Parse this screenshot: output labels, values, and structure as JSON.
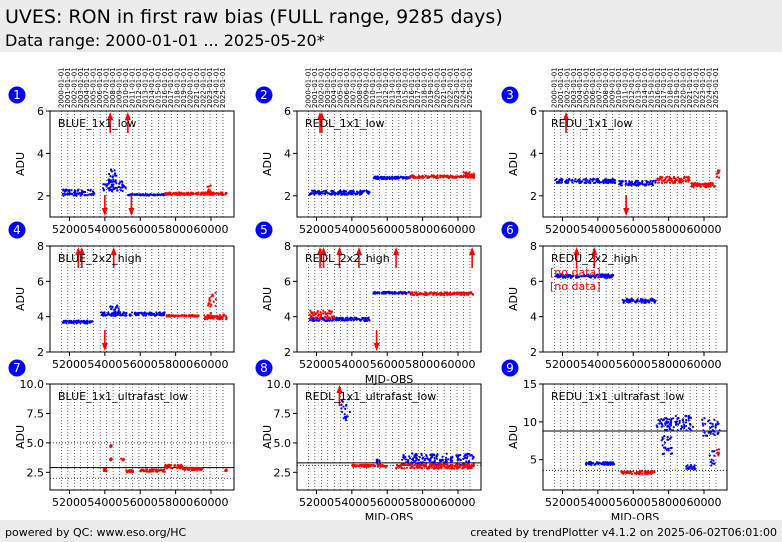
{
  "header": {
    "title": "UVES: RON in first raw bias (FULL range, 9285 days)",
    "subtitle": "Data range: 2000-01-01 ... 2025-05-20*"
  },
  "footer": {
    "left": "powered by QC: www.eso.org/HC",
    "right": "created by trendPlotter v4.1.2 on 2025-06-02T06:01:00"
  },
  "colors": {
    "blue_points": "#0000ff",
    "red_points": "#ff0000",
    "badge": "#0000ff",
    "line": "#000000"
  },
  "chart_data": [
    {
      "type": "scatter",
      "panel": "1",
      "name": "BLUE_1x1_low",
      "ylabel": "ADU",
      "xlabel": "",
      "xlim": [
        50900,
        61300
      ],
      "ylim": [
        1,
        6
      ],
      "yticks": [
        2,
        4,
        6
      ],
      "xticks": [
        52000,
        54000,
        56000,
        58000,
        60000
      ],
      "year_labels": [
        "2000-01-01",
        "2001-01-01",
        "2002-01-01",
        "2003-01-01",
        "2004-01-01",
        "2005-01-01",
        "2006-01-01",
        "2007-01-01",
        "2008-01-01",
        "2009-01-01",
        "2010-01-01",
        "2011-01-01",
        "2012-01-01",
        "2013-01-01",
        "2014-01-01",
        "2015-01-01",
        "2016-01-01",
        "2017-01-01",
        "2018-01-01",
        "2019-01-01",
        "2020-01-01",
        "2021-01-01",
        "2022-01-01",
        "2023-01-01",
        "2024-01-01",
        "2025-01-01"
      ],
      "series": [
        {
          "color": "blue",
          "segments": [
            {
              "x": [
                51600,
                53400
              ],
              "y": 2.15,
              "spread": 0.15
            },
            {
              "x": [
                53900,
                55200
              ],
              "y": 2.45,
              "spread": 0.25
            },
            {
              "x": [
                54200,
                54700
              ],
              "y": 2.9,
              "spread": 0.4
            },
            {
              "x": [
                55300,
                57400
              ],
              "y": 2.05,
              "spread": 0.03
            }
          ]
        },
        {
          "color": "red",
          "segments": [
            {
              "x": [
                57400,
                60900
              ],
              "y": 2.1,
              "spread": 0.06
            },
            {
              "x": [
                59800,
                60000
              ],
              "y": 2.3,
              "spread": 0.2
            }
          ]
        }
      ],
      "arrows": [
        {
          "x": 54300,
          "dir": "up"
        },
        {
          "x": 55300,
          "dir": "up"
        },
        {
          "x": 54000,
          "dir": "down"
        },
        {
          "x": 55500,
          "dir": "down"
        }
      ],
      "hlines": [],
      "notes": []
    },
    {
      "type": "scatter",
      "panel": "2",
      "name": "REDL_1x1_low",
      "ylabel": "ADU",
      "xlabel": "",
      "xlim": [
        50900,
        61300
      ],
      "ylim": [
        1,
        6
      ],
      "yticks": [
        2,
        4,
        6
      ],
      "xticks": [
        52000,
        54000,
        56000,
        58000,
        60000
      ],
      "year_labels": [
        "2000-01-01",
        "2001-01-01",
        "2002-01-01",
        "2003-01-01",
        "2004-01-01",
        "2005-01-01",
        "2006-01-01",
        "2007-01-01",
        "2008-01-01",
        "2009-01-01",
        "2010-01-01",
        "2011-01-01",
        "2012-01-01",
        "2013-01-01",
        "2014-01-01",
        "2015-01-01",
        "2016-01-01",
        "2017-01-01",
        "2018-01-01",
        "2019-01-01",
        "2020-01-01",
        "2021-01-01",
        "2022-01-01",
        "2023-01-01",
        "2024-01-01",
        "2025-01-01"
      ],
      "series": [
        {
          "color": "blue",
          "segments": [
            {
              "x": [
                51600,
                55000
              ],
              "y": 2.15,
              "spread": 0.1
            },
            {
              "x": [
                55200,
                57300
              ],
              "y": 2.85,
              "spread": 0.06
            }
          ]
        },
        {
          "color": "red",
          "segments": [
            {
              "x": [
                57300,
                60900
              ],
              "y": 2.9,
              "spread": 0.06
            },
            {
              "x": [
                60300,
                60900
              ],
              "y": 3.0,
              "spread": 0.12
            }
          ]
        }
      ],
      "arrows": [
        {
          "x": 52200,
          "dir": "up"
        },
        {
          "x": 52300,
          "dir": "up"
        }
      ],
      "hlines": [],
      "notes": []
    },
    {
      "type": "scatter",
      "panel": "3",
      "name": "REDU_1x1_low",
      "ylabel": "ADU",
      "xlabel": "",
      "xlim": [
        50900,
        61300
      ],
      "ylim": [
        1,
        6
      ],
      "yticks": [
        2,
        4,
        6
      ],
      "xticks": [
        52000,
        54000,
        56000,
        58000,
        60000
      ],
      "year_labels": [
        "2000-01-01",
        "2001-01-01",
        "2002-01-01",
        "2003-01-01",
        "2004-01-01",
        "2005-01-01",
        "2006-01-01",
        "2007-01-01",
        "2008-01-01",
        "2009-01-01",
        "2010-01-01",
        "2011-01-01",
        "2012-01-01",
        "2013-01-01",
        "2014-01-01",
        "2015-01-01",
        "2016-01-01",
        "2017-01-01",
        "2018-01-01",
        "2019-01-01",
        "2020-01-01",
        "2021-01-01",
        "2022-01-01",
        "2023-01-01",
        "2024-01-01",
        "2025-01-01"
      ],
      "series": [
        {
          "color": "blue",
          "segments": [
            {
              "x": [
                51600,
                55000
              ],
              "y": 2.7,
              "spread": 0.1
            },
            {
              "x": [
                55200,
                57300
              ],
              "y": 2.6,
              "spread": 0.12
            }
          ]
        },
        {
          "color": "red",
          "segments": [
            {
              "x": [
                57300,
                59200
              ],
              "y": 2.75,
              "spread": 0.15
            },
            {
              "x": [
                59300,
                60700
              ],
              "y": 2.5,
              "spread": 0.1
            },
            {
              "x": [
                60700,
                60900
              ],
              "y": 3.0,
              "spread": 0.3
            }
          ]
        }
      ],
      "arrows": [
        {
          "x": 52200,
          "dir": "up"
        },
        {
          "x": 55600,
          "dir": "down"
        }
      ],
      "hlines": [],
      "notes": []
    },
    {
      "type": "scatter",
      "panel": "4",
      "name": "BLUE_2x2_high",
      "ylabel": "ADU",
      "xlabel": "",
      "xlim": [
        50900,
        61300
      ],
      "ylim": [
        2,
        8
      ],
      "yticks": [
        2,
        4,
        6,
        8
      ],
      "xticks": [
        52000,
        54000,
        56000,
        58000,
        60000
      ],
      "series": [
        {
          "color": "blue",
          "segments": [
            {
              "x": [
                51600,
                53300
              ],
              "y": 3.7,
              "spread": 0.08
            },
            {
              "x": [
                53800,
                57400
              ],
              "y": 4.15,
              "spread": 0.1
            },
            {
              "x": [
                54300,
                54800
              ],
              "y": 4.4,
              "spread": 0.3
            }
          ]
        },
        {
          "color": "red",
          "segments": [
            {
              "x": [
                57400,
                59300
              ],
              "y": 4.05,
              "spread": 0.05
            },
            {
              "x": [
                59600,
                60900
              ],
              "y": 4.0,
              "spread": 0.15
            },
            {
              "x": [
                59800,
                60300
              ],
              "y": 4.6,
              "spread": 0.8
            }
          ]
        }
      ],
      "arrows": [
        {
          "x": 52500,
          "dir": "up"
        },
        {
          "x": 52700,
          "dir": "up"
        },
        {
          "x": 54500,
          "dir": "up"
        },
        {
          "x": 54000,
          "dir": "down"
        }
      ],
      "hlines": [],
      "notes": []
    },
    {
      "type": "scatter",
      "panel": "5",
      "name": "REDL_2x2_high",
      "ylabel": "ADU",
      "xlabel": "MJD-OBS",
      "xlim": [
        50900,
        61300
      ],
      "ylim": [
        2,
        8
      ],
      "yticks": [
        2,
        4,
        6,
        8
      ],
      "xticks": [
        52000,
        54000,
        56000,
        58000,
        60000
      ],
      "series": [
        {
          "color": "blue",
          "segments": [
            {
              "x": [
                51600,
                55000
              ],
              "y": 3.85,
              "spread": 0.1
            },
            {
              "x": [
                55200,
                57300
              ],
              "y": 5.35,
              "spread": 0.05
            }
          ]
        },
        {
          "color": "red",
          "segments": [
            {
              "x": [
                51600,
                53000
              ],
              "y": 4.1,
              "spread": 0.25
            },
            {
              "x": [
                57300,
                60900
              ],
              "y": 5.3,
              "spread": 0.08
            }
          ]
        }
      ],
      "arrows": [
        {
          "x": 52200,
          "dir": "up"
        },
        {
          "x": 52400,
          "dir": "up"
        },
        {
          "x": 53300,
          "dir": "up"
        },
        {
          "x": 54400,
          "dir": "up"
        },
        {
          "x": 56500,
          "dir": "up"
        },
        {
          "x": 60800,
          "dir": "up"
        },
        {
          "x": 55400,
          "dir": "down"
        }
      ],
      "hlines": [],
      "notes": []
    },
    {
      "type": "scatter",
      "panel": "6",
      "name": "REDU_2x2_high",
      "ylabel": "ADU",
      "xlabel": "",
      "xlim": [
        50900,
        61300
      ],
      "ylim": [
        2,
        8
      ],
      "yticks": [
        2,
        4,
        6,
        8
      ],
      "xticks": [
        52000,
        54000,
        56000,
        58000,
        60000
      ],
      "series": [
        {
          "color": "blue",
          "segments": [
            {
              "x": [
                51600,
                54900
              ],
              "y": 6.3,
              "spread": 0.1
            },
            {
              "x": [
                55400,
                57300
              ],
              "y": 4.9,
              "spread": 0.12
            }
          ]
        }
      ],
      "arrows": [
        {
          "x": 52800,
          "dir": "up"
        },
        {
          "x": 53800,
          "dir": "up"
        }
      ],
      "hlines": [],
      "notes": [
        "[no data]",
        "[no data]"
      ]
    },
    {
      "type": "scatter",
      "panel": "7",
      "name": "BLUE_1x1_ultrafast_low",
      "ylabel": "ADU",
      "xlabel": "",
      "xlim": [
        50900,
        61300
      ],
      "ylim": [
        1,
        10
      ],
      "yticks": [
        2.5,
        5.0,
        7.5,
        10.0
      ],
      "xticks": [
        52000,
        54000,
        56000,
        58000,
        60000
      ],
      "series": [
        {
          "color": "red",
          "segments": [
            {
              "x": [
                53900,
                54100
              ],
              "y": 2.7,
              "spread": 0.1
            },
            {
              "x": [
                54300,
                54400
              ],
              "y": 4.7,
              "spread": 0.1
            },
            {
              "x": [
                54300,
                54400
              ],
              "y": 3.6,
              "spread": 0.1
            },
            {
              "x": [
                54900,
                55100
              ],
              "y": 3.6,
              "spread": 0.1
            },
            {
              "x": [
                55200,
                55600
              ],
              "y": 2.6,
              "spread": 0.1
            },
            {
              "x": [
                56000,
                57400
              ],
              "y": 2.65,
              "spread": 0.1
            },
            {
              "x": [
                57400,
                58400
              ],
              "y": 3.0,
              "spread": 0.15
            },
            {
              "x": [
                58400,
                59500
              ],
              "y": 2.8,
              "spread": 0.12
            },
            {
              "x": [
                60800,
                60900
              ],
              "y": 2.7,
              "spread": 0.1
            }
          ]
        }
      ],
      "arrows": [],
      "hlines": [
        {
          "y": 2.9,
          "style": "solid"
        },
        {
          "y": 5.0,
          "style": "dotted"
        },
        {
          "y": 2.0,
          "style": "dotted"
        }
      ],
      "notes": []
    },
    {
      "type": "scatter",
      "panel": "8",
      "name": "REDL_1x1_ultrafast_low",
      "ylabel": "ADU",
      "xlabel": "MJD-OBS",
      "xlim": [
        50900,
        61300
      ],
      "ylim": [
        1,
        10
      ],
      "yticks": [
        2.5,
        5.0,
        7.5,
        10.0
      ],
      "xticks": [
        52000,
        54000,
        56000,
        58000,
        60000
      ],
      "series": [
        {
          "color": "blue",
          "segments": [
            {
              "x": [
                53400,
                53900
              ],
              "y": 8.0,
              "spread": 1.1
            },
            {
              "x": [
                56800,
                60900
              ],
              "y": 3.6,
              "spread": 0.5
            },
            {
              "x": [
                55400,
                55600
              ],
              "y": 3.4,
              "spread": 0.2
            }
          ]
        },
        {
          "color": "red",
          "segments": [
            {
              "x": [
                54000,
                56000
              ],
              "y": 3.05,
              "spread": 0.1
            },
            {
              "x": [
                56500,
                60900
              ],
              "y": 3.0,
              "spread": 0.2
            }
          ]
        }
      ],
      "arrows": [
        {
          "x": 53300,
          "dir": "up"
        }
      ],
      "hlines": [
        {
          "y": 3.3,
          "style": "solid"
        },
        {
          "y": 3.1,
          "style": "dotted"
        }
      ],
      "notes": []
    },
    {
      "type": "scatter",
      "panel": "9",
      "name": "REDU_1x1_ultrafast_low",
      "ylabel": "ADU",
      "xlabel": "MJD-OBS",
      "xlim": [
        50900,
        61300
      ],
      "ylim": [
        1,
        15
      ],
      "yticks": [
        5,
        10,
        15
      ],
      "xticks": [
        52000,
        54000,
        56000,
        58000,
        60000
      ],
      "series": [
        {
          "color": "blue",
          "segments": [
            {
              "x": [
                53300,
                55000
              ],
              "y": 4.5,
              "spread": 0.2
            },
            {
              "x": [
                57300,
                59400
              ],
              "y": 9.8,
              "spread": 1.0
            },
            {
              "x": [
                57600,
                58200
              ],
              "y": 7.0,
              "spread": 1.3
            },
            {
              "x": [
                59900,
                60900
              ],
              "y": 9.3,
              "spread": 1.2
            },
            {
              "x": [
                59000,
                59500
              ],
              "y": 4.0,
              "spread": 0.3
            },
            {
              "x": [
                60300,
                60600
              ],
              "y": 5.0,
              "spread": 1.2
            }
          ]
        },
        {
          "color": "red",
          "segments": [
            {
              "x": [
                55300,
                57200
              ],
              "y": 3.3,
              "spread": 0.2
            },
            {
              "x": [
                60700,
                60900
              ],
              "y": 5.8,
              "spread": 0.6
            }
          ]
        }
      ],
      "arrows": [],
      "hlines": [
        {
          "y": 8.8,
          "style": "solid"
        },
        {
          "y": 3.6,
          "style": "dotted"
        }
      ],
      "notes": []
    }
  ]
}
